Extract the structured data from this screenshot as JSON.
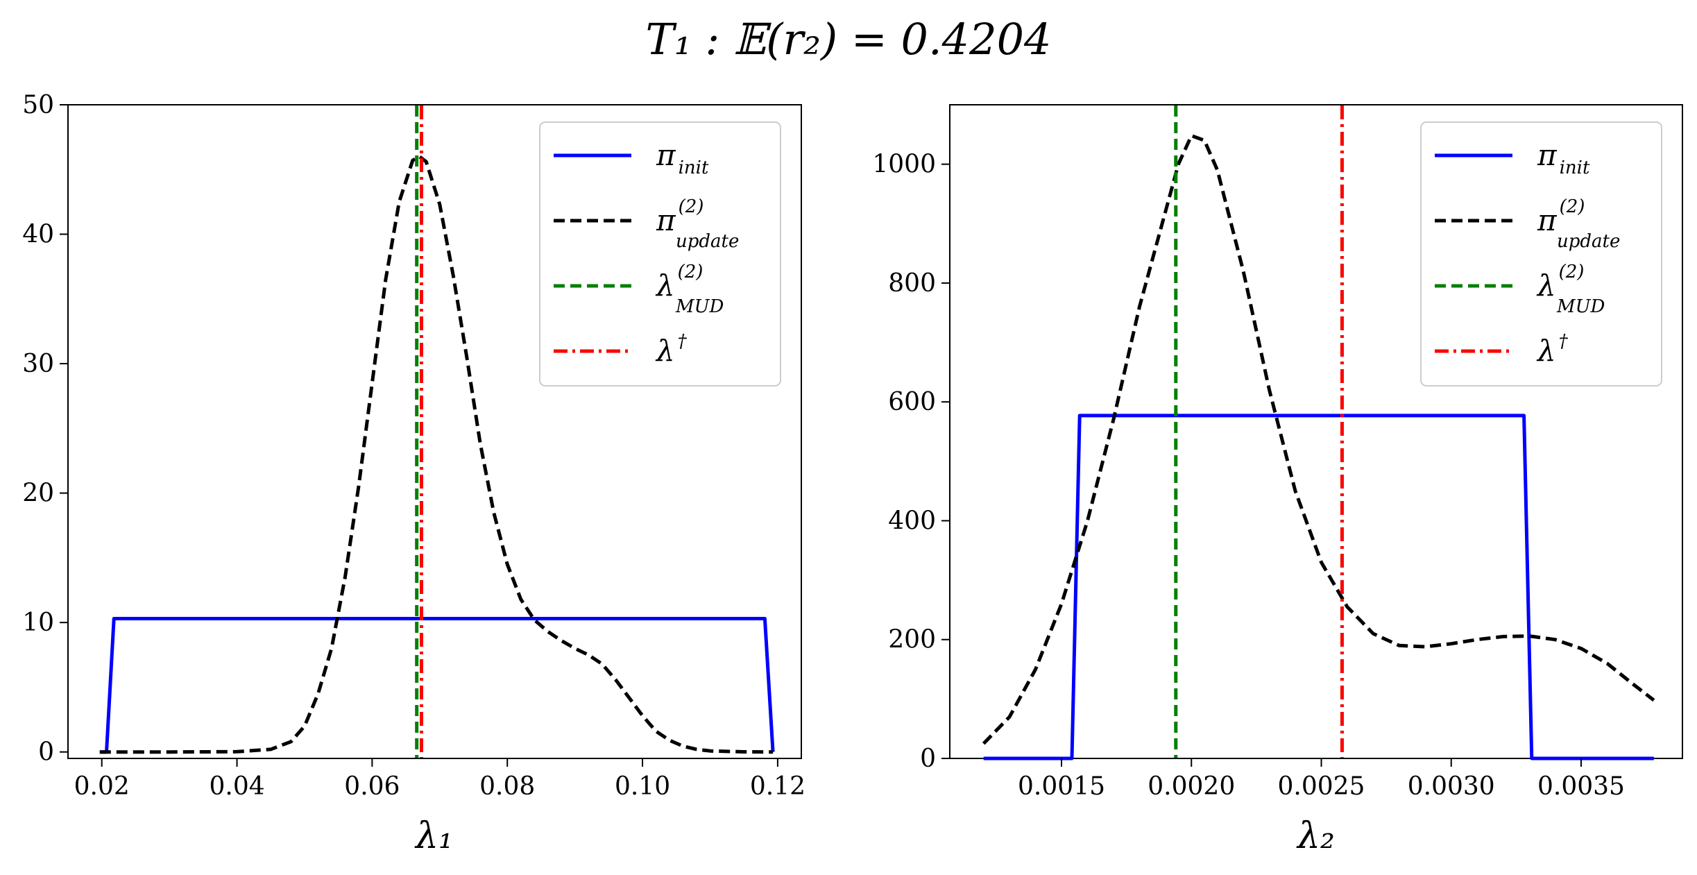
{
  "title": "T₁ : 𝔼(r₂) = 0.4204",
  "colors": {
    "init": "#0000ff",
    "update": "#000000",
    "mud": "#008000",
    "dagger": "#ff0000"
  },
  "chart_data": [
    {
      "type": "line",
      "xlabel": "λ₁",
      "ylabel": "",
      "xlim": [
        0.015,
        0.1235
      ],
      "ylim": [
        -0.5,
        50
      ],
      "xticks": [
        0.02,
        0.04,
        0.06,
        0.08,
        0.1,
        0.12
      ],
      "xtick_labels": [
        "0.02",
        "0.04",
        "0.06",
        "0.08",
        "0.10",
        "0.12"
      ],
      "yticks": [
        0,
        10,
        20,
        30,
        40,
        50
      ],
      "ytick_labels": [
        "0",
        "10",
        "20",
        "30",
        "40",
        "50"
      ],
      "grid": false,
      "legend_position": "top-right",
      "legend": [
        {
          "key": "init",
          "base": "π",
          "sub": "init",
          "sup": "",
          "style": "solid"
        },
        {
          "key": "update",
          "base": "π",
          "sub": "update",
          "sup": "(2)",
          "style": "dashed"
        },
        {
          "key": "mud",
          "base": "λ",
          "sub": "MUD",
          "sup": "(2)",
          "style": "dashed"
        },
        {
          "key": "dagger",
          "base": "λ",
          "sub": "",
          "sup": "†",
          "style": "dashdot"
        }
      ],
      "series": [
        {
          "name": "π_init",
          "key": "init",
          "style": "solid",
          "x": [
            0.0197,
            0.0207,
            0.0218,
            0.1181,
            0.1193
          ],
          "y": [
            0,
            0,
            10.3,
            10.3,
            0
          ]
        },
        {
          "name": "π_update^(2)",
          "key": "update",
          "style": "dashed",
          "x": [
            0.0197,
            0.03,
            0.04,
            0.045,
            0.048,
            0.05,
            0.052,
            0.054,
            0.056,
            0.058,
            0.06,
            0.062,
            0.064,
            0.066,
            0.067,
            0.068,
            0.07,
            0.072,
            0.074,
            0.076,
            0.078,
            0.08,
            0.082,
            0.084,
            0.086,
            0.088,
            0.09,
            0.092,
            0.094,
            0.096,
            0.098,
            0.1,
            0.102,
            0.104,
            0.106,
            0.108,
            0.11,
            0.115,
            0.1193
          ],
          "y": [
            0,
            0,
            0.02,
            0.2,
            0.8,
            2.0,
            4.5,
            8.0,
            13.5,
            20.5,
            28.5,
            36.5,
            42.5,
            45.7,
            46.0,
            45.6,
            42.3,
            36.8,
            30.5,
            23.8,
            18.5,
            14.5,
            11.8,
            10.2,
            9.3,
            8.6,
            8.0,
            7.5,
            6.8,
            5.6,
            4.2,
            2.8,
            1.6,
            0.9,
            0.45,
            0.2,
            0.08,
            0.01,
            0
          ]
        },
        {
          "name": "λ_MUD^(2)",
          "key": "mud",
          "style": "dashed",
          "vline": 0.0666
        },
        {
          "name": "λ†",
          "key": "dagger",
          "style": "dashdot",
          "vline": 0.0673
        }
      ]
    },
    {
      "type": "line",
      "xlabel": "λ₂",
      "ylabel": "",
      "xlim": [
        0.00107,
        0.00389
      ],
      "ylim": [
        0,
        1100
      ],
      "xticks": [
        0.0015,
        0.002,
        0.0025,
        0.003,
        0.0035
      ],
      "xtick_labels": [
        "0.0015",
        "0.0020",
        "0.0025",
        "0.0030",
        "0.0035"
      ],
      "yticks": [
        0,
        200,
        400,
        600,
        800,
        1000
      ],
      "ytick_labels": [
        "0",
        "200",
        "400",
        "600",
        "800",
        "1000"
      ],
      "grid": false,
      "legend_position": "top-right",
      "legend": [
        {
          "key": "init",
          "base": "π",
          "sub": "init",
          "sup": "",
          "style": "solid"
        },
        {
          "key": "update",
          "base": "π",
          "sub": "update",
          "sup": "(2)",
          "style": "dashed"
        },
        {
          "key": "mud",
          "base": "λ",
          "sub": "MUD",
          "sup": "(2)",
          "style": "dashed"
        },
        {
          "key": "dagger",
          "base": "λ",
          "sub": "",
          "sup": "†",
          "style": "dashdot"
        }
      ],
      "series": [
        {
          "name": "π_init",
          "key": "init",
          "style": "solid",
          "x": [
            0.0012,
            0.00154,
            0.00157,
            0.00328,
            0.00331,
            0.00378
          ],
          "y": [
            0,
            0,
            577,
            577,
            0,
            0
          ]
        },
        {
          "name": "π_update^(2)",
          "key": "update",
          "style": "dashed",
          "x": [
            0.0012,
            0.0013,
            0.0014,
            0.0015,
            0.0016,
            0.0017,
            0.0018,
            0.0019,
            0.00195,
            0.002,
            0.00205,
            0.0021,
            0.0022,
            0.0023,
            0.0024,
            0.0025,
            0.0026,
            0.0027,
            0.0028,
            0.0029,
            0.003,
            0.0031,
            0.0032,
            0.0033,
            0.0034,
            0.0035,
            0.0036,
            0.0037,
            0.00378
          ],
          "y": [
            25,
            70,
            150,
            260,
            400,
            570,
            760,
            920,
            1000,
            1048,
            1040,
            990,
            820,
            620,
            450,
            330,
            255,
            210,
            190,
            188,
            193,
            200,
            205,
            206,
            200,
            185,
            160,
            125,
            98
          ]
        },
        {
          "name": "λ_MUD^(2)",
          "key": "mud",
          "style": "dashed",
          "vline": 0.00194
        },
        {
          "name": "λ†",
          "key": "dagger",
          "style": "dashdot",
          "vline": 0.00258
        }
      ]
    }
  ]
}
